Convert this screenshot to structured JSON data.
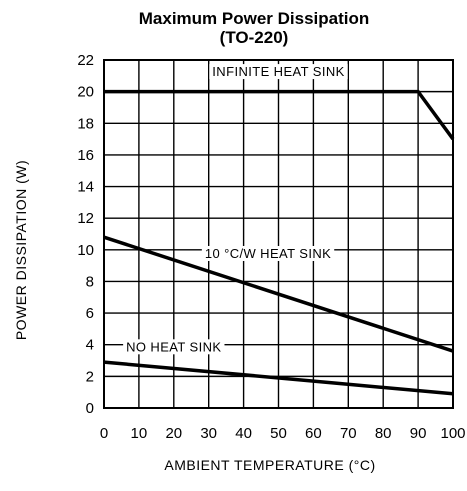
{
  "chart_data": {
    "type": "line",
    "title": "Maximum Power Dissipation",
    "subtitle": "(TO-220)",
    "xlabel": "AMBIENT TEMPERATURE (°C)",
    "ylabel": "POWER DISSIPATION (W)",
    "xlim": [
      0,
      100
    ],
    "ylim": [
      0,
      22
    ],
    "xticks": [
      "0",
      "10",
      "20",
      "30",
      "40",
      "50",
      "60",
      "70",
      "80",
      "90",
      "100"
    ],
    "yticks": [
      "0",
      "2",
      "4",
      "6",
      "8",
      "10",
      "12",
      "14",
      "16",
      "18",
      "20",
      "22"
    ],
    "grid": true,
    "series": [
      {
        "name": "INFINITE HEAT SINK",
        "x": [
          0,
          90,
          100
        ],
        "y": [
          20,
          20,
          17
        ]
      },
      {
        "name": "10 °C/W HEAT SINK",
        "x": [
          0,
          100
        ],
        "y": [
          10.8,
          3.6
        ]
      },
      {
        "name": "NO HEAT SINK",
        "x": [
          0,
          100
        ],
        "y": [
          2.9,
          0.9
        ]
      }
    ]
  }
}
